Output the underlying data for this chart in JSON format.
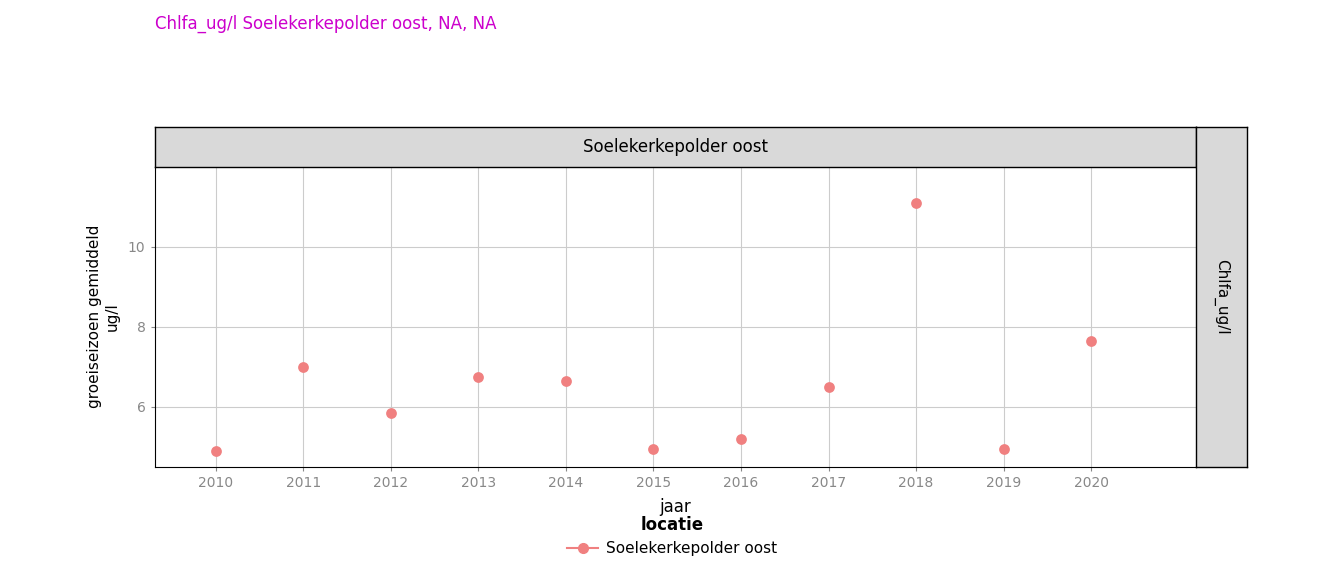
{
  "title": "Chlfa_ug/l Soelekerkepolder oost, NA, NA",
  "title_color": "#CC00CC",
  "panel_title": "Soelekerkepolder oost",
  "xlabel": "jaar",
  "ylabel": "groeiseizoen gemiddeld\nug/l",
  "right_label": "Chlfa_ug/l",
  "legend_title": "locatie",
  "legend_label": "Soelekerkepolder oost",
  "years": [
    2010,
    2011,
    2012,
    2013,
    2014,
    2015,
    2016,
    2017,
    2018,
    2019,
    2020
  ],
  "values": [
    4.9,
    7.0,
    5.85,
    6.75,
    6.65,
    4.95,
    5.2,
    6.5,
    11.1,
    4.95,
    7.65
  ],
  "dot_color": "#F08080",
  "dot_size": 60,
  "ylim": [
    4.5,
    12.0
  ],
  "xlim": [
    2009.3,
    2021.2
  ],
  "yticks": [
    6,
    8,
    10
  ],
  "xticks": [
    2010,
    2011,
    2012,
    2013,
    2014,
    2015,
    2016,
    2017,
    2018,
    2019,
    2020
  ],
  "tick_color": "#888888",
  "background_color": "#ffffff",
  "plot_bg_color": "#ffffff",
  "panel_header_color": "#d9d9d9",
  "right_strip_color": "#d9d9d9",
  "grid_color": "#cccccc"
}
